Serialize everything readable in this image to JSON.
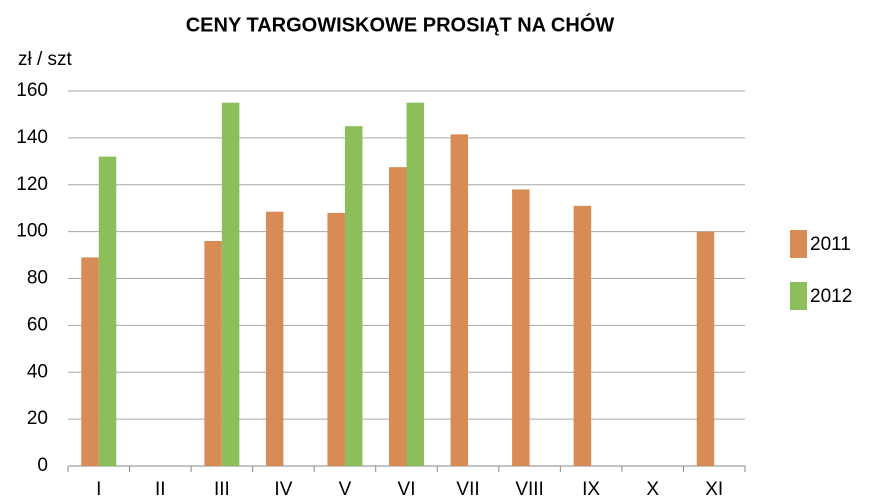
{
  "chart_data": {
    "type": "bar",
    "title": "CENY TARGOWISKOWE PROSIĄT NA CHÓW",
    "y_label": "zł / szt",
    "categories": [
      "I",
      "II",
      "III",
      "IV",
      "V",
      "VI",
      "VII",
      "VIII",
      "IX",
      "X",
      "XI"
    ],
    "series": [
      {
        "name": "2011",
        "color": "#d98b55",
        "values": [
          89,
          null,
          96,
          108.5,
          108,
          127.5,
          141.5,
          118,
          111,
          null,
          100
        ]
      },
      {
        "name": "2012",
        "color": "#8cbf5a",
        "values": [
          132,
          null,
          155,
          null,
          145,
          155,
          null,
          null,
          null,
          null,
          null
        ]
      }
    ],
    "ylim": [
      0,
      160
    ],
    "yticks": [
      0,
      20,
      40,
      60,
      80,
      100,
      120,
      140,
      160
    ],
    "grid": true,
    "legend": "right"
  }
}
